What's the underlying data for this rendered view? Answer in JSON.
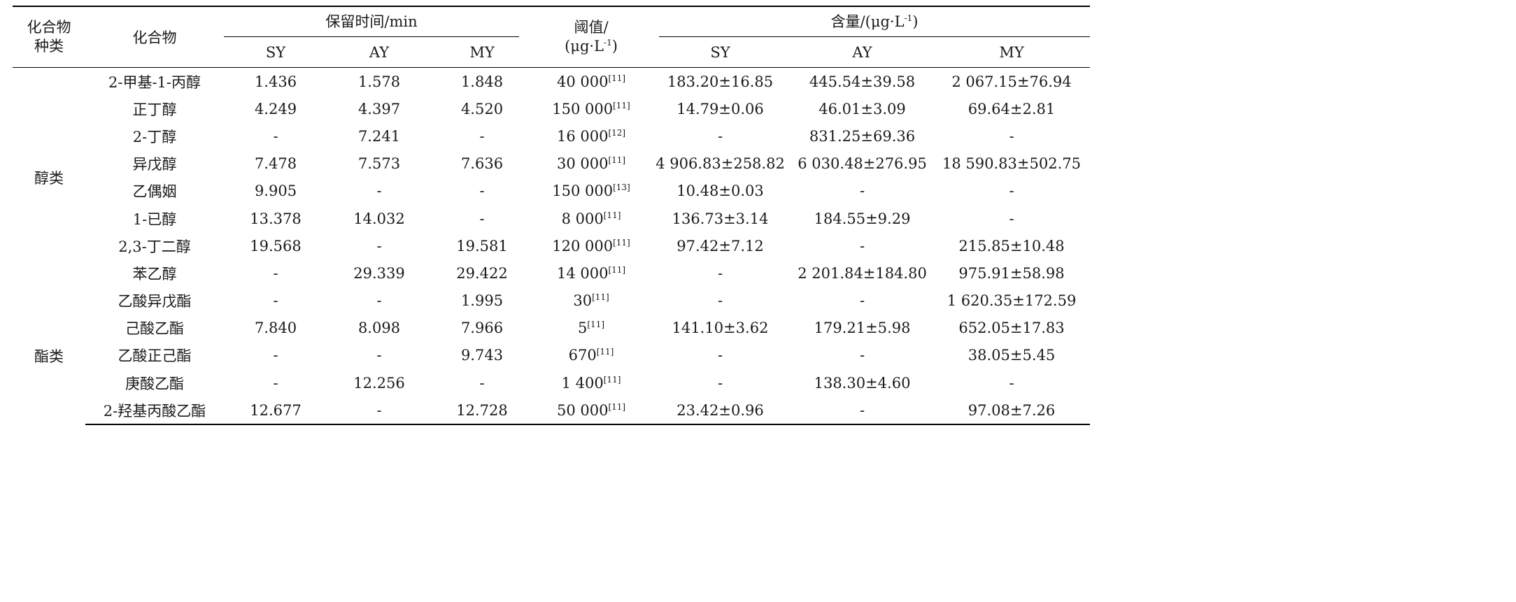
{
  "header": {
    "col_category": [
      "化合物",
      "种类"
    ],
    "col_compound": "化合物",
    "group_retention": "保留时间/min",
    "col_threshold": [
      "阈值/",
      "(μg·L",
      "-1",
      ")"
    ],
    "group_content": [
      "含量/(μg·L",
      "-1",
      ")"
    ],
    "sub": {
      "sy1": "SY",
      "ay1": "AY",
      "my1": "MY",
      "sy2": "SY",
      "ay2": "AY",
      "my2": "MY"
    }
  },
  "categories": {
    "alcohols": "醇类",
    "esters": "酯类"
  },
  "rows": [
    {
      "name": "2-甲基-1-丙醇",
      "rt_sy": "1.436",
      "rt_ay": "1.578",
      "rt_my": "1.848",
      "thr": "40 000",
      "ref": "[11]",
      "c_sy": "183.20±16.85",
      "c_ay": "445.54±39.58",
      "c_my": "2 067.15±76.94"
    },
    {
      "name": "正丁醇",
      "rt_sy": "4.249",
      "rt_ay": "4.397",
      "rt_my": "4.520",
      "thr": "150 000",
      "ref": "[11]",
      "c_sy": "14.79±0.06",
      "c_ay": "46.01±3.09",
      "c_my": "69.64±2.81"
    },
    {
      "name": "2-丁醇",
      "rt_sy": "-",
      "rt_ay": "7.241",
      "rt_my": "-",
      "thr": "16 000",
      "ref": "[12]",
      "c_sy": "-",
      "c_ay": "831.25±69.36",
      "c_my": "-"
    },
    {
      "name": "异戊醇",
      "rt_sy": "7.478",
      "rt_ay": "7.573",
      "rt_my": "7.636",
      "thr": "30 000",
      "ref": "[11]",
      "c_sy": "4 906.83±258.82",
      "c_ay": "6 030.48±276.95",
      "c_my": "18 590.83±502.75"
    },
    {
      "name": "乙偶姻",
      "rt_sy": "9.905",
      "rt_ay": "-",
      "rt_my": "-",
      "thr": "150 000",
      "ref": "[13]",
      "c_sy": "10.48±0.03",
      "c_ay": "-",
      "c_my": "-"
    },
    {
      "name": "1-已醇",
      "rt_sy": "13.378",
      "rt_ay": "14.032",
      "rt_my": "-",
      "thr": "8 000",
      "ref": "[11]",
      "c_sy": "136.73±3.14",
      "c_ay": "184.55±9.29",
      "c_my": "-"
    },
    {
      "name": "2,3-丁二醇",
      "rt_sy": "19.568",
      "rt_ay": "-",
      "rt_my": "19.581",
      "thr": "120 000",
      "ref": "[11]",
      "c_sy": "97.42±7.12",
      "c_ay": "-",
      "c_my": "215.85±10.48"
    },
    {
      "name": "苯乙醇",
      "rt_sy": "-",
      "rt_ay": "29.339",
      "rt_my": "29.422",
      "thr": "14 000",
      "ref": "[11]",
      "c_sy": "-",
      "c_ay": "2 201.84±184.80",
      "c_my": "975.91±58.98"
    },
    {
      "name": "乙酸异戊酯",
      "rt_sy": "-",
      "rt_ay": "-",
      "rt_my": "1.995",
      "thr": "30",
      "ref": "[11]",
      "c_sy": "-",
      "c_ay": "-",
      "c_my": "1 620.35±172.59"
    },
    {
      "name": "己酸乙酯",
      "rt_sy": "7.840",
      "rt_ay": "8.098",
      "rt_my": "7.966",
      "thr": "5",
      "ref": "[11]",
      "c_sy": "141.10±3.62",
      "c_ay": "179.21±5.98",
      "c_my": "652.05±17.83"
    },
    {
      "name": "乙酸正己酯",
      "rt_sy": "-",
      "rt_ay": "-",
      "rt_my": "9.743",
      "thr": "670",
      "ref": "[11]",
      "c_sy": "-",
      "c_ay": "-",
      "c_my": "38.05±5.45"
    },
    {
      "name": "庚酸乙酯",
      "rt_sy": "-",
      "rt_ay": "12.256",
      "rt_my": "-",
      "thr": "1 400",
      "ref": "[11]",
      "c_sy": "-",
      "c_ay": "138.30±4.60",
      "c_my": "-"
    },
    {
      "name": "2-羟基丙酸乙酯",
      "rt_sy": "12.677",
      "rt_ay": "-",
      "rt_my": "12.728",
      "thr": "50 000",
      "ref": "[11]",
      "c_sy": "23.42±0.96",
      "c_ay": "-",
      "c_my": "97.08±7.26"
    }
  ]
}
